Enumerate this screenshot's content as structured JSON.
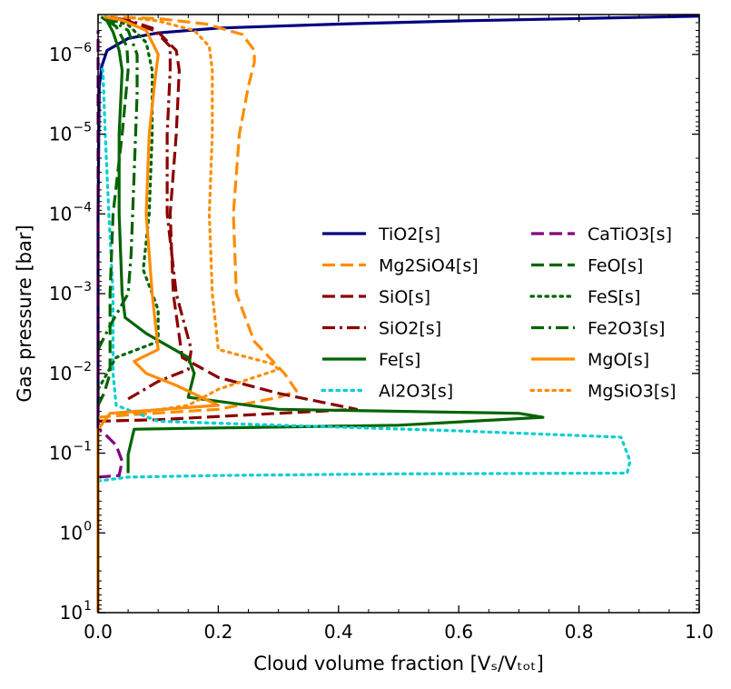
{
  "chart_data": {
    "type": "line",
    "xlabel": "Cloud volume fraction [Vₛ/Vₜₒₜ]",
    "ylabel": "Gas pressure [bar]",
    "xlim": [
      0.0,
      1.0
    ],
    "ylim_log10": [
      -6.5,
      1.0
    ],
    "y_scale": "log",
    "y_inverted": true,
    "x_tick_labels": [
      "0.0",
      "0.2",
      "0.4",
      "0.6",
      "0.8",
      "1.0"
    ],
    "x_ticks": [
      0.0,
      0.2,
      0.4,
      0.6,
      0.8,
      1.0
    ],
    "y_tick_exponents": [
      -6,
      -5,
      -4,
      -3,
      -2,
      -1,
      0,
      1
    ],
    "legend_position": "center-right",
    "series": [
      {
        "name": "TiO2[s]",
        "color": "#000080",
        "style": "solid",
        "points": [
          [
            0.0,
            1.0
          ],
          [
            0.0,
            -4.0
          ],
          [
            0.002,
            -5.6
          ],
          [
            0.006,
            -5.85
          ],
          [
            0.015,
            -6.05
          ],
          [
            0.05,
            -6.2
          ],
          [
            0.1,
            -6.27
          ],
          [
            0.2,
            -6.33
          ],
          [
            0.4,
            -6.38
          ],
          [
            0.6,
            -6.42
          ],
          [
            0.8,
            -6.45
          ],
          [
            1.0,
            -6.48
          ]
        ]
      },
      {
        "name": "Mg2SiO4[s]",
        "color": "#ff8c00",
        "style": "dashed",
        "points": [
          [
            0.0,
            -1.45
          ],
          [
            0.05,
            -1.48
          ],
          [
            0.2,
            -1.55
          ],
          [
            0.3,
            -1.7
          ],
          [
            0.33,
            -1.78
          ],
          [
            0.31,
            -2.0
          ],
          [
            0.26,
            -2.4
          ],
          [
            0.23,
            -3.0
          ],
          [
            0.225,
            -4.0
          ],
          [
            0.235,
            -5.0
          ],
          [
            0.25,
            -5.6
          ],
          [
            0.26,
            -5.9
          ],
          [
            0.26,
            -6.05
          ],
          [
            0.24,
            -6.25
          ],
          [
            0.18,
            -6.38
          ],
          [
            0.1,
            -6.45
          ],
          [
            0.02,
            -6.47
          ]
        ]
      },
      {
        "name": "SiO[s]",
        "color": "#8b0000",
        "style": "dashed",
        "points": [
          [
            0.0,
            -1.4
          ],
          [
            0.1,
            -1.42
          ],
          [
            0.3,
            -1.5
          ],
          [
            0.43,
            -1.55
          ],
          [
            0.3,
            -1.75
          ],
          [
            0.2,
            -1.95
          ],
          [
            0.14,
            -2.2
          ],
          [
            0.125,
            -3.0
          ],
          [
            0.12,
            -4.0
          ],
          [
            0.13,
            -5.0
          ],
          [
            0.135,
            -5.8
          ],
          [
            0.13,
            -6.05
          ],
          [
            0.1,
            -6.28
          ],
          [
            0.05,
            -6.42
          ],
          [
            0.01,
            -6.47
          ]
        ]
      },
      {
        "name": "SiO2[s]",
        "color": "#8b0000",
        "style": "dashdot",
        "points": [
          [
            0.05,
            -1.68
          ],
          [
            0.1,
            -1.9
          ],
          [
            0.15,
            -2.05
          ],
          [
            0.155,
            -2.3
          ],
          [
            0.13,
            -3.0
          ],
          [
            0.115,
            -4.0
          ],
          [
            0.115,
            -5.0
          ],
          [
            0.12,
            -5.8
          ],
          [
            0.12,
            -6.1
          ],
          [
            0.09,
            -6.33
          ],
          [
            0.05,
            -6.43
          ],
          [
            0.01,
            -6.47
          ]
        ]
      },
      {
        "name": "Fe[s]",
        "color": "#006400",
        "style": "solid",
        "points": [
          [
            0.05,
            -0.75
          ],
          [
            0.05,
            -0.98
          ],
          [
            0.06,
            -1.3
          ],
          [
            0.5,
            -1.35
          ],
          [
            0.74,
            -1.45
          ],
          [
            0.7,
            -1.5
          ],
          [
            0.3,
            -1.55
          ],
          [
            0.15,
            -1.7
          ],
          [
            0.16,
            -2.0
          ],
          [
            0.15,
            -2.2
          ],
          [
            0.08,
            -2.5
          ],
          [
            0.045,
            -2.7
          ],
          [
            0.04,
            -3.0
          ],
          [
            0.035,
            -4.0
          ],
          [
            0.035,
            -5.0
          ],
          [
            0.04,
            -5.8
          ],
          [
            0.035,
            -6.05
          ],
          [
            0.025,
            -6.28
          ],
          [
            0.015,
            -6.42
          ],
          [
            0.005,
            -6.47
          ]
        ]
      },
      {
        "name": "Al2O3[s]",
        "color": "#00ced1",
        "style": "dotted",
        "points": [
          [
            0.0,
            -0.65
          ],
          [
            0.05,
            -0.7
          ],
          [
            0.2,
            -0.72
          ],
          [
            0.5,
            -0.74
          ],
          [
            0.88,
            -0.75
          ],
          [
            0.885,
            -0.9
          ],
          [
            0.87,
            -1.2
          ],
          [
            0.6,
            -1.28
          ],
          [
            0.3,
            -1.35
          ],
          [
            0.1,
            -1.4
          ],
          [
            0.03,
            -1.6
          ],
          [
            0.025,
            -2.0
          ],
          [
            0.025,
            -3.0
          ],
          [
            0.018,
            -4.0
          ],
          [
            0.012,
            -5.0
          ],
          [
            0.008,
            -5.8
          ],
          [
            0.0,
            -5.9
          ]
        ]
      },
      {
        "name": "CaTiO3[s]",
        "color": "#800080",
        "style": "dashed",
        "points": [
          [
            0.0,
            -0.7
          ],
          [
            0.035,
            -0.72
          ],
          [
            0.04,
            -0.9
          ],
          [
            0.03,
            -1.1
          ],
          [
            0.01,
            -1.25
          ],
          [
            0.0,
            -1.3
          ],
          [
            0.0,
            -2.0
          ],
          [
            0.0,
            -4.0
          ],
          [
            0.0,
            -6.3
          ]
        ]
      },
      {
        "name": "FeO[s]",
        "color": "#006400",
        "style": "dashed",
        "points": [
          [
            0.0,
            -1.6
          ],
          [
            0.01,
            -1.75
          ],
          [
            0.02,
            -2.0
          ],
          [
            0.02,
            -3.0
          ],
          [
            0.025,
            -4.0
          ],
          [
            0.04,
            -5.0
          ],
          [
            0.05,
            -5.8
          ],
          [
            0.048,
            -6.1
          ],
          [
            0.03,
            -6.35
          ],
          [
            0.01,
            -6.45
          ]
        ]
      },
      {
        "name": "FeS[s]",
        "color": "#006400",
        "style": "dotted",
        "points": [
          [
            0.0,
            -1.8
          ],
          [
            0.03,
            -2.2
          ],
          [
            0.1,
            -2.4
          ],
          [
            0.1,
            -2.8
          ],
          [
            0.075,
            -3.3
          ],
          [
            0.085,
            -4.0
          ],
          [
            0.09,
            -5.0
          ],
          [
            0.09,
            -5.8
          ],
          [
            0.08,
            -6.15
          ],
          [
            0.05,
            -6.37
          ],
          [
            0.01,
            -6.46
          ]
        ]
      },
      {
        "name": "Fe2O3[s]",
        "color": "#006400",
        "style": "dashdot",
        "points": [
          [
            0.0,
            -2.3
          ],
          [
            0.02,
            -2.6
          ],
          [
            0.05,
            -3.0
          ],
          [
            0.055,
            -3.5
          ],
          [
            0.06,
            -4.5
          ],
          [
            0.065,
            -5.5
          ],
          [
            0.065,
            -6.0
          ],
          [
            0.05,
            -6.3
          ],
          [
            0.02,
            -6.44
          ],
          [
            0.005,
            -6.47
          ]
        ]
      },
      {
        "name": "MgO[s]",
        "color": "#ff8c00",
        "style": "solid",
        "points": [
          [
            0.0,
            1.0
          ],
          [
            0.0,
            -1.3
          ],
          [
            0.02,
            -1.5
          ],
          [
            0.2,
            -1.6
          ],
          [
            0.13,
            -1.85
          ],
          [
            0.08,
            -2.0
          ],
          [
            0.06,
            -2.15
          ],
          [
            0.1,
            -2.3
          ],
          [
            0.09,
            -3.0
          ],
          [
            0.08,
            -4.0
          ],
          [
            0.085,
            -5.0
          ],
          [
            0.095,
            -5.7
          ],
          [
            0.1,
            -6.0
          ],
          [
            0.08,
            -6.3
          ],
          [
            0.04,
            -6.43
          ],
          [
            0.01,
            -6.47
          ]
        ]
      },
      {
        "name": "MgSiO3[s]",
        "color": "#ff8c00",
        "style": "dotted",
        "points": [
          [
            0.06,
            -1.5
          ],
          [
            0.15,
            -1.6
          ],
          [
            0.2,
            -1.8
          ],
          [
            0.3,
            -2.05
          ],
          [
            0.29,
            -2.12
          ],
          [
            0.2,
            -2.3
          ],
          [
            0.19,
            -3.0
          ],
          [
            0.185,
            -4.0
          ],
          [
            0.19,
            -5.0
          ],
          [
            0.19,
            -5.8
          ],
          [
            0.185,
            -6.1
          ],
          [
            0.16,
            -6.3
          ],
          [
            0.1,
            -6.42
          ],
          [
            0.04,
            -6.47
          ]
        ]
      }
    ]
  }
}
